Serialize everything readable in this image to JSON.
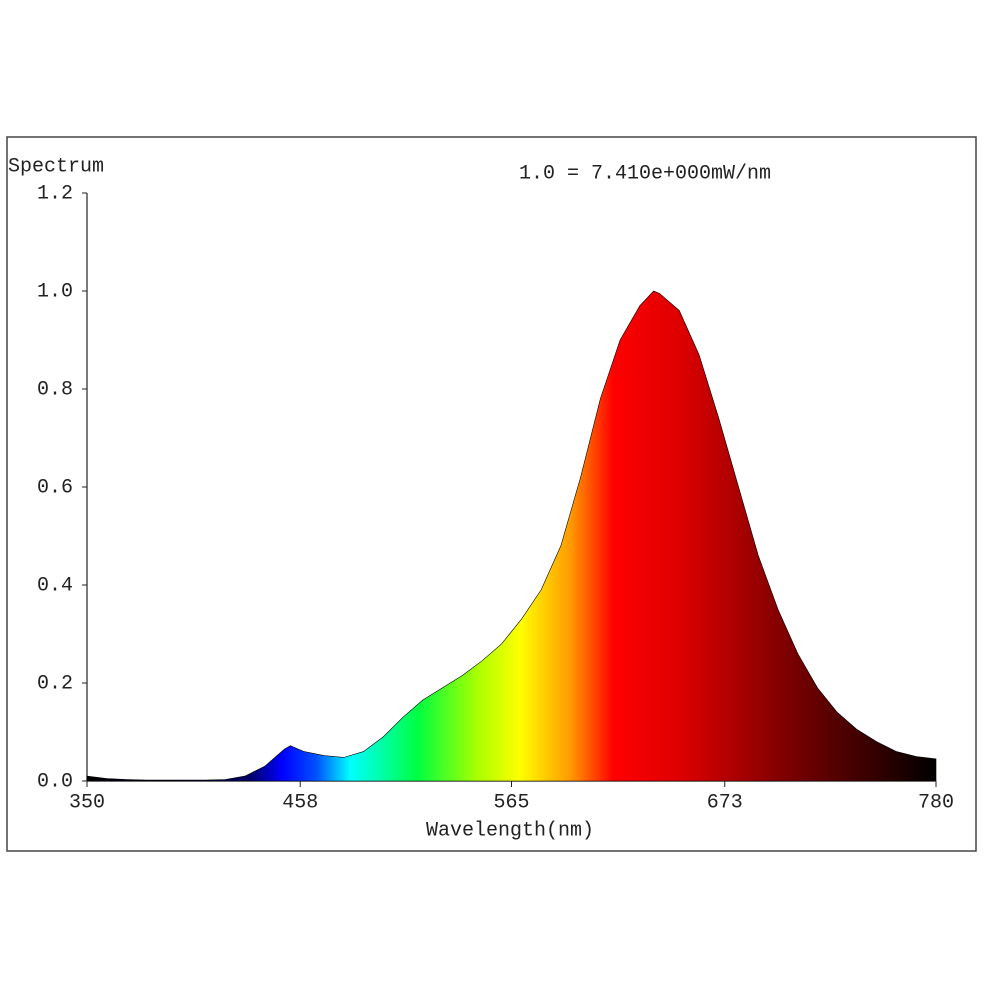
{
  "chart_data": {
    "type": "area",
    "title": "Spectrum",
    "annotation": "1.0 = 7.410e+000mW/nm",
    "x_label": "Wavelength(nm)",
    "x": [
      350,
      360,
      370,
      380,
      390,
      400,
      410,
      420,
      430,
      440,
      450,
      453,
      460,
      470,
      480,
      490,
      500,
      510,
      520,
      530,
      540,
      550,
      560,
      570,
      580,
      590,
      600,
      610,
      620,
      630,
      637,
      640,
      650,
      660,
      670,
      680,
      690,
      700,
      710,
      720,
      730,
      740,
      750,
      760,
      770,
      780
    ],
    "values": [
      0.01,
      0.005,
      0.003,
      0.002,
      0.002,
      0.002,
      0.002,
      0.003,
      0.01,
      0.03,
      0.065,
      0.072,
      0.06,
      0.052,
      0.048,
      0.06,
      0.09,
      0.13,
      0.165,
      0.19,
      0.215,
      0.245,
      0.28,
      0.33,
      0.39,
      0.48,
      0.62,
      0.78,
      0.9,
      0.97,
      1.0,
      0.995,
      0.96,
      0.87,
      0.74,
      0.6,
      0.46,
      0.35,
      0.26,
      0.19,
      0.14,
      0.105,
      0.08,
      0.06,
      0.05,
      0.045
    ],
    "xlim": [
      350,
      780
    ],
    "xticks": [
      350,
      458,
      565,
      673,
      780
    ],
    "ylim": [
      0,
      1.2
    ],
    "yticks": [
      {
        "value": 0,
        "label": "0.0"
      },
      0.2,
      0.4,
      0.6,
      0.8,
      {
        "value": 1,
        "label": "1.0"
      },
      1.2
    ]
  }
}
